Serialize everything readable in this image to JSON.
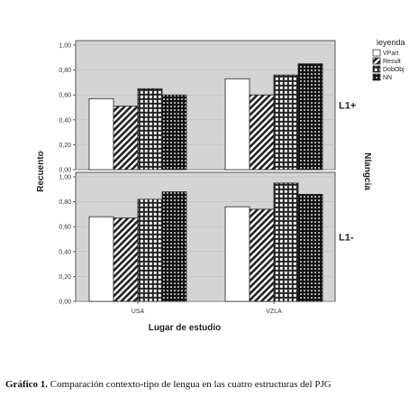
{
  "caption": {
    "label": "Gráfico 1.",
    "text": "Comparación contexto-tipo de lengua en las cuatro estructuras del PJG"
  },
  "chart_data": {
    "type": "bar",
    "xlabel": "Lugar de estudio",
    "ylabel": "Recuento",
    "right_label": "Nlangcia",
    "ylim": [
      0,
      1.0
    ],
    "yticks": [
      "0,00",
      "0,20",
      "0,40",
      "0,60",
      "0,80",
      "1,00"
    ],
    "categories": [
      "USA",
      "VZLA"
    ],
    "legend": {
      "title": "leyenda",
      "position": "top-right"
    },
    "series_names": [
      "VPart",
      "Result",
      "DobObj",
      "NN"
    ],
    "panels": [
      {
        "label": "L1+",
        "series": [
          {
            "name": "VPart",
            "values": [
              0.57,
              0.73
            ]
          },
          {
            "name": "Result",
            "values": [
              0.51,
              0.6
            ]
          },
          {
            "name": "DobObj",
            "values": [
              0.65,
              0.76
            ]
          },
          {
            "name": "NN",
            "values": [
              0.6,
              0.85
            ]
          }
        ]
      },
      {
        "label": "L1-",
        "series": [
          {
            "name": "VPart",
            "values": [
              0.68,
              0.76
            ]
          },
          {
            "name": "Result",
            "values": [
              0.67,
              0.74
            ]
          },
          {
            "name": "DobObj",
            "values": [
              0.82,
              0.95
            ]
          },
          {
            "name": "NN",
            "values": [
              0.88,
              0.86
            ]
          }
        ]
      }
    ],
    "colors": {
      "panel_bg": "#d4d4d4",
      "bar_stroke": "#222222",
      "grid": "#b8b8b8"
    }
  }
}
